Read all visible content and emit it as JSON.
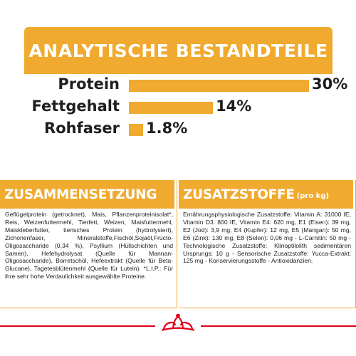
{
  "colors": {
    "accent": "#f0aa2f",
    "text": "#1e1e1e",
    "brand_red": "#e2001a",
    "background": "#ffffff"
  },
  "header": {
    "title": "ANALYTISCHE BESTANDTEILE"
  },
  "chart_data": {
    "type": "bar",
    "orientation": "horizontal",
    "categories": [
      "Protein",
      "Fettgehalt",
      "Rohfaser"
    ],
    "values": [
      30,
      14,
      1.8
    ],
    "value_labels": [
      "30%",
      "14%",
      "1.8%"
    ],
    "unit": "%",
    "xlim": [
      0,
      30
    ],
    "grid": false,
    "title": "ANALYTISCHE BESTANDTEILE"
  },
  "composition": {
    "title": "ZUSAMMENSETZUNG",
    "text": "Geflügelprotein (getrocknet), Mais, Pflanzenproteinisolat*, Reis, Weizenfuttermehl, Tierfett, Weizen, Maisfuttermehl, Maiskleberfutter, tierisches Protein (hydrolysiert), Zichorienfaser, Mineralstoffe,Fischöl,Sojaöl,Fructo-Oligosaccharide (0,34 %), Psyllium (Hüllschichten und Samen), Hefehydrolysat (Quelle für Mannan-Oligosaccharide), Borretschöl, Hefeextrakt (Quelle für Beta-Glucane), Tagetesblütenmehl (Quelle für Lutein). *L.I.P.: Für ihre sehr hohe Verdaulichkeit ausgewählte Proteine."
  },
  "additives": {
    "title": "ZUSATZSTOFFE",
    "subtitle": "(pro kg)",
    "text": "Ernährungsphysiologische Zusatzstoffe: Vitamin A: 31000 IE, Vitamin D3: 800 IE, Vitamin E4: 620 mg, E1 (Eisen): 39 mg, E2 (Jod): 3,9 mg, E4 (Kupfer): 12 mg, E5 (Mangan): 50 mg, E6 (Zink): 130 mg, E8 (Selen): 0,06 mg - L-Carnitin: 50 mg - Technologische Zusatzstoffe: Klinoptilolith sedimentären Ursprungs: 10 g - Sensorische Zusatzstoffe: Yucca-Extrakt: 125 mg - Konservierungsstoffe - Antioxidanzien."
  },
  "footer": {
    "logo_icon": "royal-canin-crown-icon"
  }
}
